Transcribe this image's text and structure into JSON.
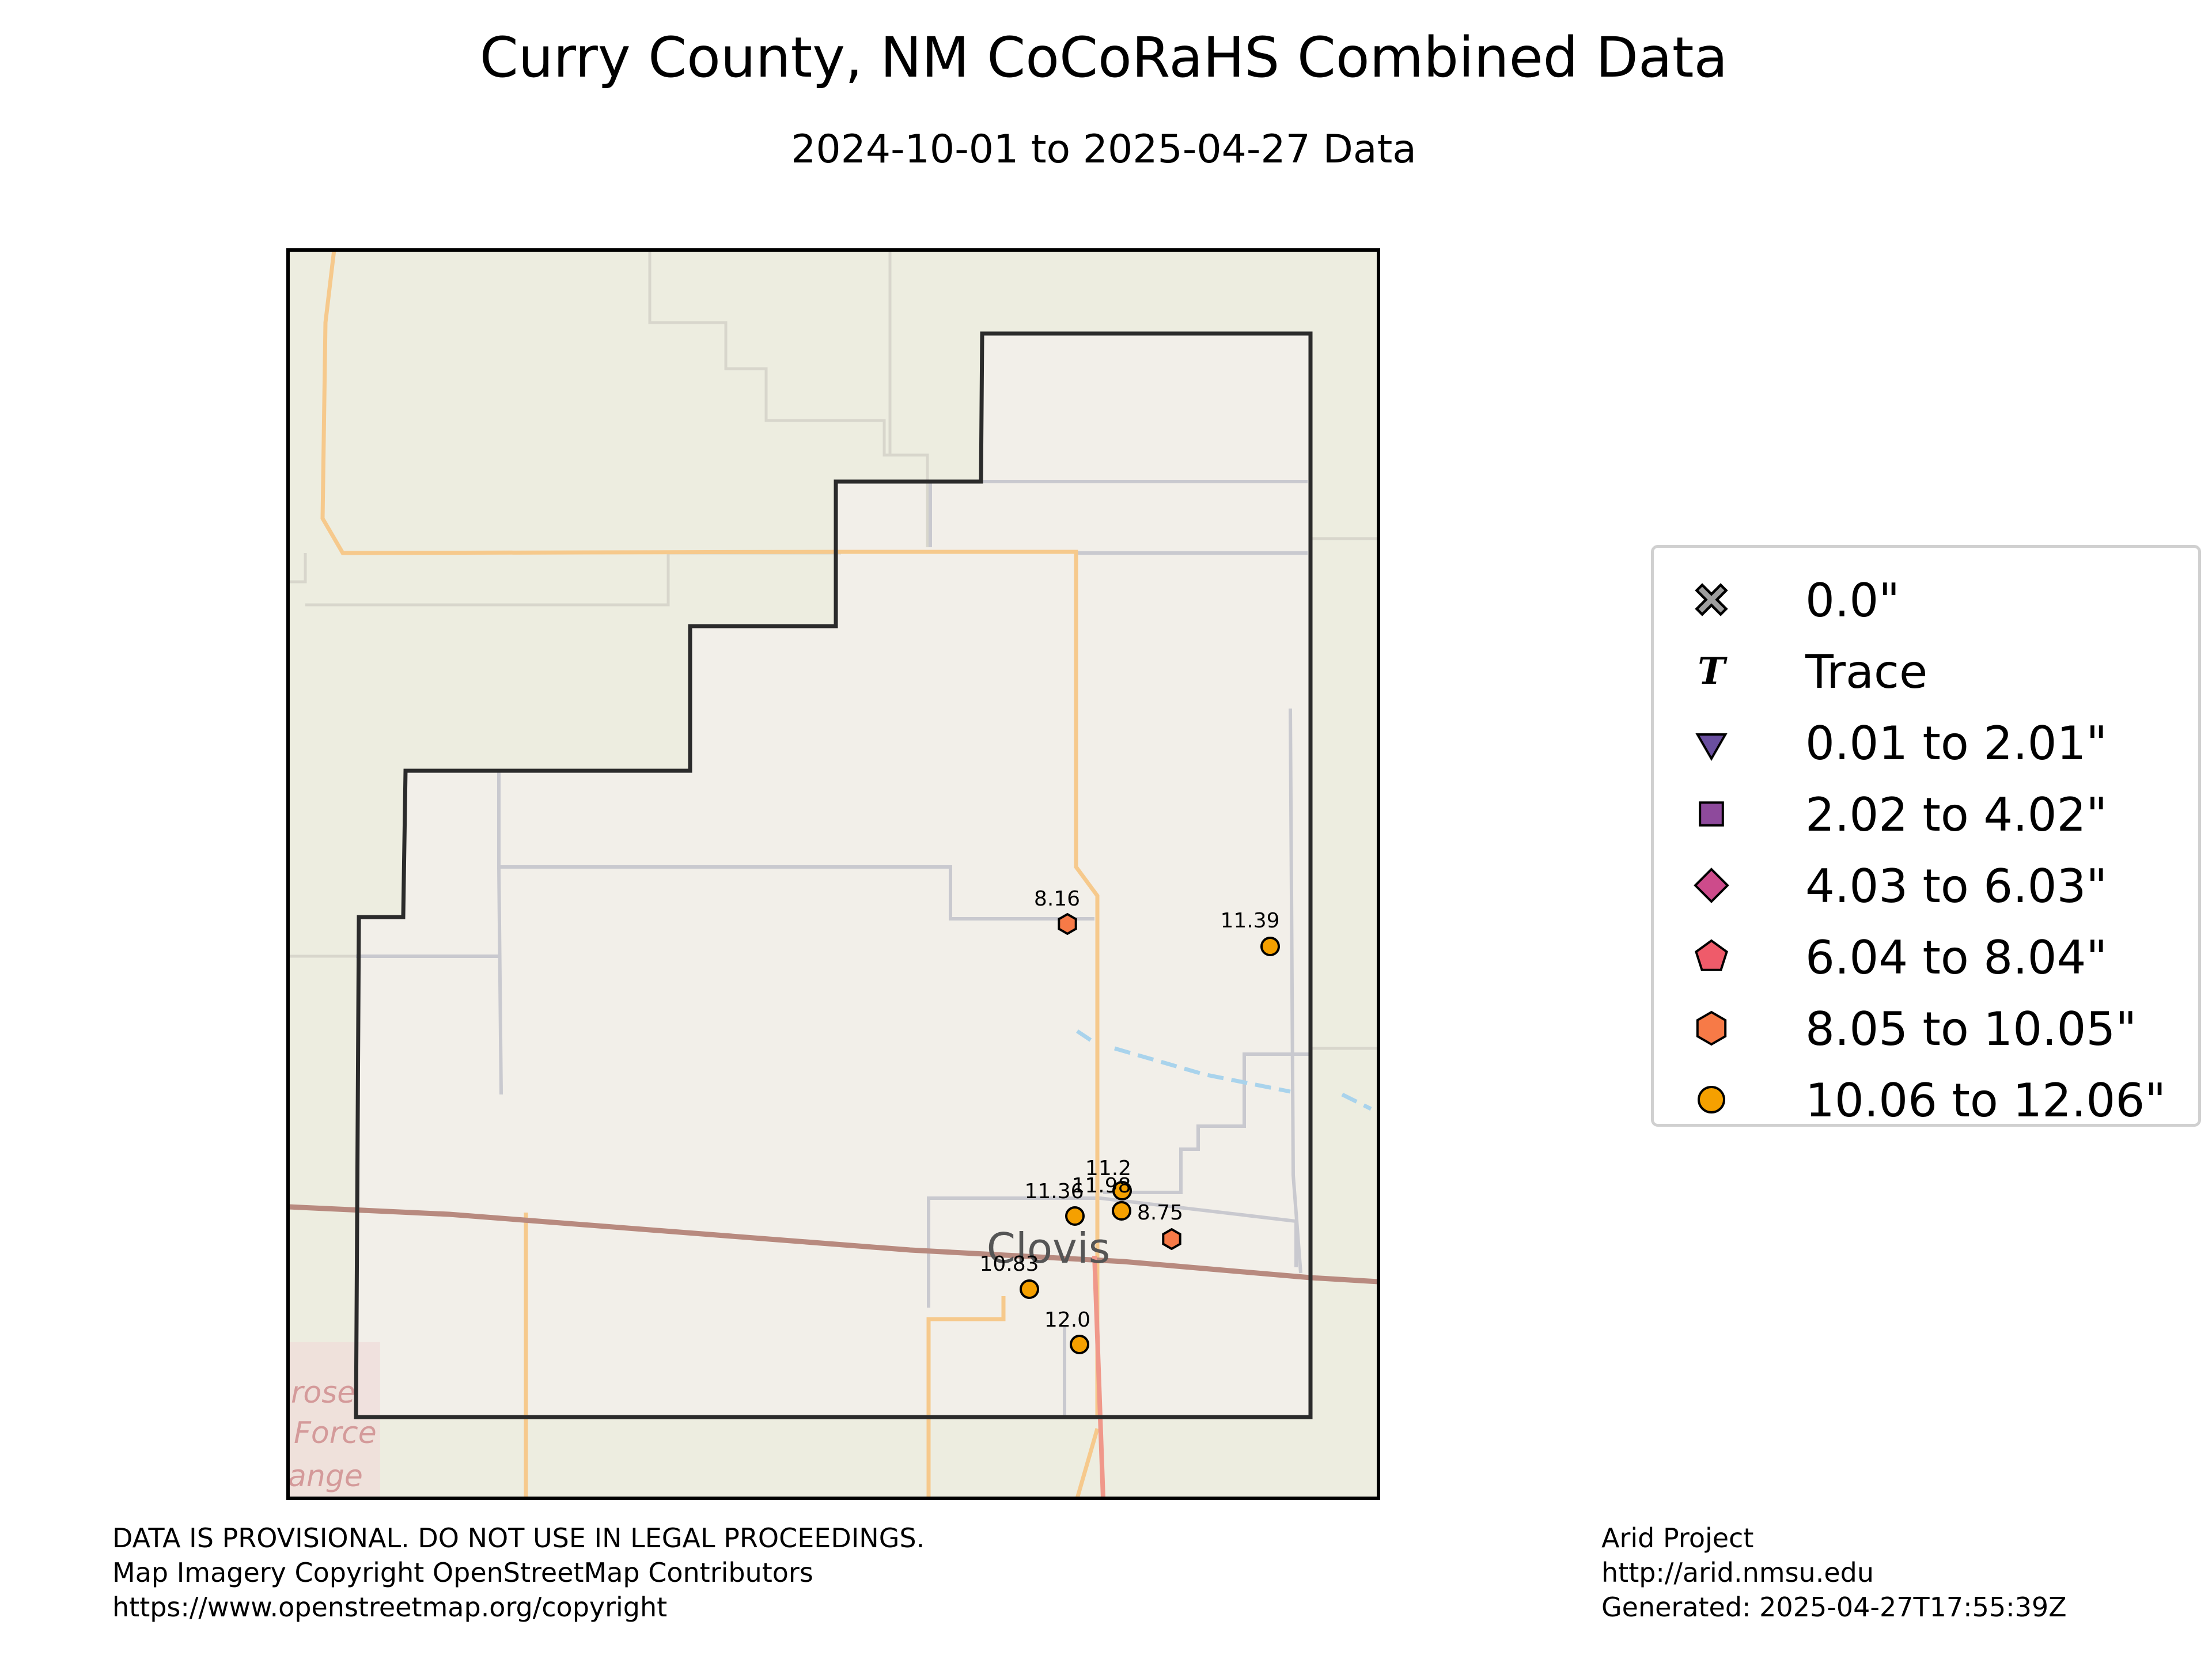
{
  "title": "Curry County, NM CoCoRaHS Combined Data",
  "subtitle": "2024-10-01 to 2025-04-27 Data",
  "map": {
    "place_label": "Clovis",
    "background_labels": [
      "rose",
      "Force",
      "ange"
    ],
    "stations": [
      {
        "value": "8.16",
        "category": "8.05 to 10.05\""
      },
      {
        "value": "11.39",
        "category": "10.06 to 12.06\""
      },
      {
        "value": "11.2",
        "category": "10.06 to 12.06\""
      },
      {
        "value": "11.98",
        "category": "10.06 to 12.06\""
      },
      {
        "value": "11.36",
        "category": "10.06 to 12.06\""
      },
      {
        "value": "8.75",
        "category": "8.05 to 10.05\""
      },
      {
        "value": "10.83",
        "category": "10.06 to 12.06\""
      },
      {
        "value": "12.0",
        "category": "10.06 to 12.06\""
      }
    ]
  },
  "legend": {
    "items": [
      {
        "label": "0.0\"",
        "marker": "x-icon",
        "color": "#9e9e9e"
      },
      {
        "label": "Trace",
        "marker": "t-icon",
        "color": "#000000"
      },
      {
        "label": "0.01 to 2.01\"",
        "marker": "triangle-down-icon",
        "color": "#6a4fa0"
      },
      {
        "label": "2.02 to 4.02\"",
        "marker": "square-icon",
        "color": "#8e4a9c"
      },
      {
        "label": "4.03 to 6.03\"",
        "marker": "diamond-icon",
        "color": "#cd4b8b"
      },
      {
        "label": "6.04 to 8.04\"",
        "marker": "pentagon-icon",
        "color": "#ef5b6a"
      },
      {
        "label": "8.05 to 10.05\"",
        "marker": "hexagon-icon",
        "color": "#f77a47"
      },
      {
        "label": "10.06 to 12.06\"",
        "marker": "circle-icon",
        "color": "#f5a000"
      }
    ]
  },
  "footer_left": [
    "DATA IS PROVISIONAL. DO NOT USE IN LEGAL PROCEEDINGS.",
    "Map Imagery Copyright OpenStreetMap Contributors",
    "https://www.openstreetmap.org/copyright"
  ],
  "footer_right": [
    "Arid Project",
    "http://arid.nmsu.edu",
    "Generated: 2025-04-27T17:55:39Z"
  ]
}
